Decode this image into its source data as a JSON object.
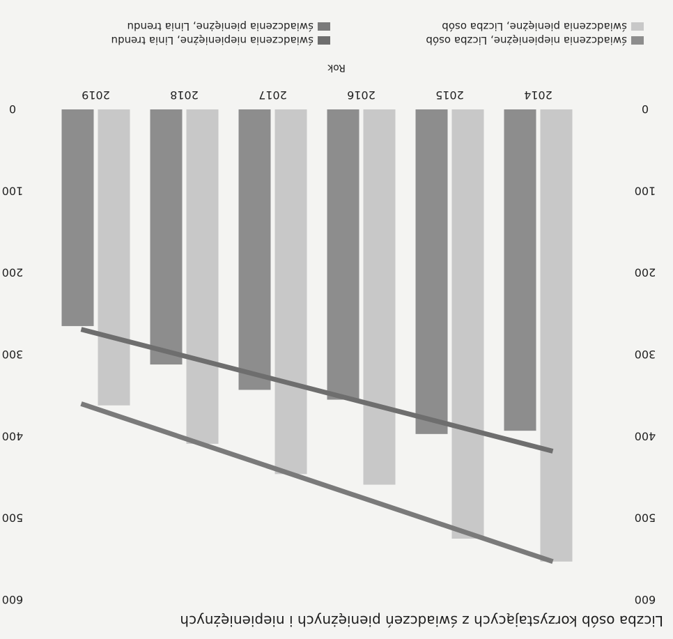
{
  "chart_data": {
    "type": "bar",
    "title": "Liczba osób korzystających z świadczeń pieniężnych i niepieniężnych",
    "xlabel": "Rok",
    "ylabel": "",
    "categories": [
      "2014",
      "2015",
      "2016",
      "2017",
      "2018",
      "2019"
    ],
    "ylim": [
      0,
      600
    ],
    "yticks": [
      0,
      100,
      200,
      300,
      400,
      500,
      600
    ],
    "series": [
      {
        "name": "świadczenia pieniężne, Liczba osób",
        "values": [
          553,
          525,
          459,
          446,
          409,
          362
        ],
        "color": "#c8c8c8"
      },
      {
        "name": "świadczenia niepieniężne, Liczba osób",
        "values": [
          393,
          397,
          355,
          343,
          312,
          265
        ],
        "color": "#8d8d8d"
      }
    ],
    "trendlines": [
      {
        "name": "świadczenia pieniężne, Linia trendu",
        "from": 553,
        "to": 360,
        "color": "#7a7a7a"
      },
      {
        "name": "świadczenia niepieniężne, Linia trendu",
        "from": 418,
        "to": 269,
        "color": "#6e6e6e"
      }
    ],
    "legend": [
      "świadczenia niepieniężne, Liczba osób",
      "świadczenia niepieniężne, Linia trendu",
      "świadczenia pieniężne, Liczba osób",
      "świadczenia pieniężne, Linia trendu"
    ],
    "legend_colors": [
      "#8d8d8d",
      "#6e6e6e",
      "#c8c8c8",
      "#7a7a7a"
    ],
    "legend_position": "bottom",
    "grid": false,
    "rotated": "180deg"
  }
}
